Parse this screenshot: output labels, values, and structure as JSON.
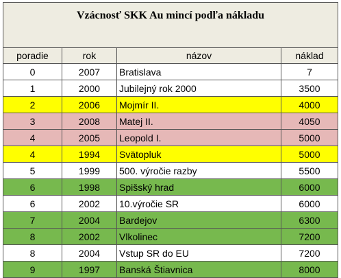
{
  "header": {
    "title": "Vzácnosť SKK Au mincí podľa nákladu"
  },
  "table": {
    "columns": [
      "poradie",
      "rok",
      "názov",
      "náklad"
    ],
    "rows": [
      [
        "0",
        "2007",
        "Bratislava",
        "7"
      ],
      [
        "1",
        "2000",
        "Jubilejný rok 2000",
        "3500"
      ],
      [
        "2",
        "2006",
        "Mojmír II.",
        "4000"
      ],
      [
        "3",
        "2008",
        "Matej II.",
        "4050"
      ],
      [
        "4",
        "2005",
        "Leopold I.",
        "5000"
      ],
      [
        "4",
        "1994",
        "Svätopluk",
        "5000"
      ],
      [
        "5",
        "1999",
        "500. výročie razby",
        "5500"
      ],
      [
        "6",
        "1998",
        "Spišský hrad",
        "6000"
      ],
      [
        "6",
        "2002",
        "10.výročie SR",
        "6000"
      ],
      [
        "7",
        "2004",
        "Bardejov",
        "6300"
      ],
      [
        "8",
        "2002",
        "Vlkolinec",
        "7200"
      ],
      [
        "8",
        "2004",
        "Vstup SR do EU",
        "7200"
      ],
      [
        "9",
        "1997",
        "Banská Štiavnica",
        "8000"
      ]
    ],
    "row_colors": [
      "#ffffff",
      "#ffffff",
      "#ffff00",
      "#e6b8b7",
      "#e6b8b7",
      "#ffff00",
      "#ffffff",
      "#77b94e",
      "#ffffff",
      "#77b94e",
      "#77b94e",
      "#ffffff",
      "#77b94e"
    ]
  }
}
